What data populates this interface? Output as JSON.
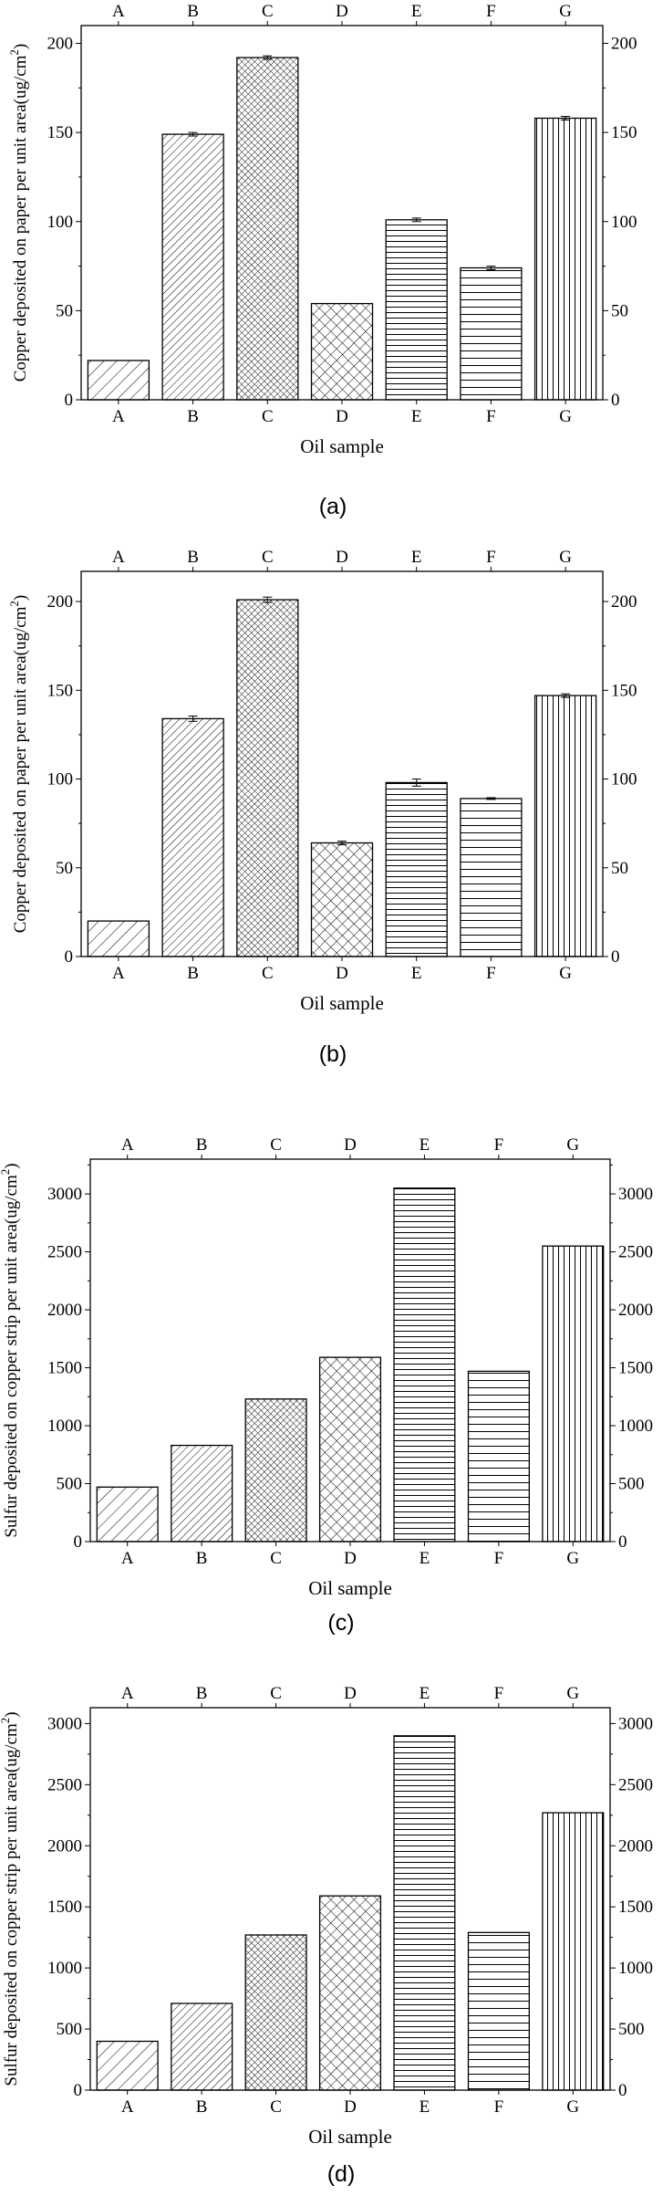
{
  "chart_data": [
    {
      "type": "bar",
      "panel_label": "(a)",
      "categories": [
        "A",
        "B",
        "C",
        "D",
        "E",
        "F",
        "G"
      ],
      "values": [
        22,
        149,
        192,
        54,
        101,
        74,
        158
      ],
      "errors": [
        0,
        1,
        1,
        0,
        1,
        1,
        1
      ],
      "patterns": [
        "diag-sparse",
        "diag-dense",
        "crosshatch-dense",
        "crosshatch-sparse",
        "horizontal-dense",
        "horizontal-sparse",
        "vertical"
      ],
      "xlabel": "Oil sample",
      "ylabel": "Copper deposited on paper per unit area(ug/cm",
      "ylabel_sup": "2",
      "ylabel_end": ")",
      "ylim": [
        0,
        210
      ],
      "yticks": [
        "0",
        "50",
        "100",
        "150",
        "200"
      ],
      "error_bars": true
    },
    {
      "type": "bar",
      "panel_label": "(b)",
      "categories": [
        "A",
        "B",
        "C",
        "D",
        "E",
        "F",
        "G"
      ],
      "values": [
        20,
        134,
        201,
        64,
        98,
        89,
        147
      ],
      "errors": [
        0,
        1.5,
        1.5,
        1,
        2,
        0.5,
        1
      ],
      "patterns": [
        "diag-sparse",
        "diag-dense",
        "crosshatch-dense",
        "crosshatch-sparse",
        "horizontal-dense",
        "horizontal-sparse",
        "vertical"
      ],
      "xlabel": "Oil sample",
      "ylabel": "Copper deposited on paper per unit area(ug/cm",
      "ylabel_sup": "2",
      "ylabel_end": ")",
      "ylim": [
        0,
        217
      ],
      "yticks": [
        "0",
        "50",
        "100",
        "150",
        "200"
      ],
      "error_bars": true
    },
    {
      "type": "bar",
      "panel_label": "(c)",
      "categories": [
        "A",
        "B",
        "C",
        "D",
        "E",
        "F",
        "G"
      ],
      "values": [
        470,
        830,
        1230,
        1590,
        3050,
        1470,
        2550
      ],
      "errors": [
        0,
        0,
        0,
        0,
        0,
        0,
        0
      ],
      "patterns": [
        "diag-sparse",
        "diag-dense",
        "crosshatch-dense",
        "crosshatch-sparse",
        "horizontal-dense",
        "horizontal-sparse",
        "vertical"
      ],
      "xlabel": "Oil sample",
      "ylabel": "Sulfur deposited on copper strip per unit area(ug/cm",
      "ylabel_sup": "2",
      "ylabel_end": ")",
      "ylim": [
        0,
        3300
      ],
      "yticks": [
        "0",
        "500",
        "1000",
        "1500",
        "2000",
        "2500",
        "3000"
      ],
      "error_bars": false
    },
    {
      "type": "bar",
      "panel_label": "(d)",
      "categories": [
        "A",
        "B",
        "C",
        "D",
        "E",
        "F",
        "G"
      ],
      "values": [
        400,
        710,
        1270,
        1590,
        2900,
        1290,
        2270
      ],
      "errors": [
        0,
        0,
        0,
        0,
        0,
        0,
        0
      ],
      "patterns": [
        "diag-sparse",
        "diag-dense",
        "crosshatch-dense",
        "crosshatch-sparse",
        "horizontal-dense",
        "horizontal-sparse",
        "vertical"
      ],
      "xlabel": "Oil sample",
      "ylabel": "Sulfur deposited on copper strip per unit area(ug/cm",
      "ylabel_sup": "2",
      "ylabel_end": ")",
      "ylim": [
        0,
        3130
      ],
      "yticks": [
        "0",
        "500",
        "1000",
        "1500",
        "2000",
        "2500",
        "3000"
      ],
      "error_bars": false
    }
  ]
}
